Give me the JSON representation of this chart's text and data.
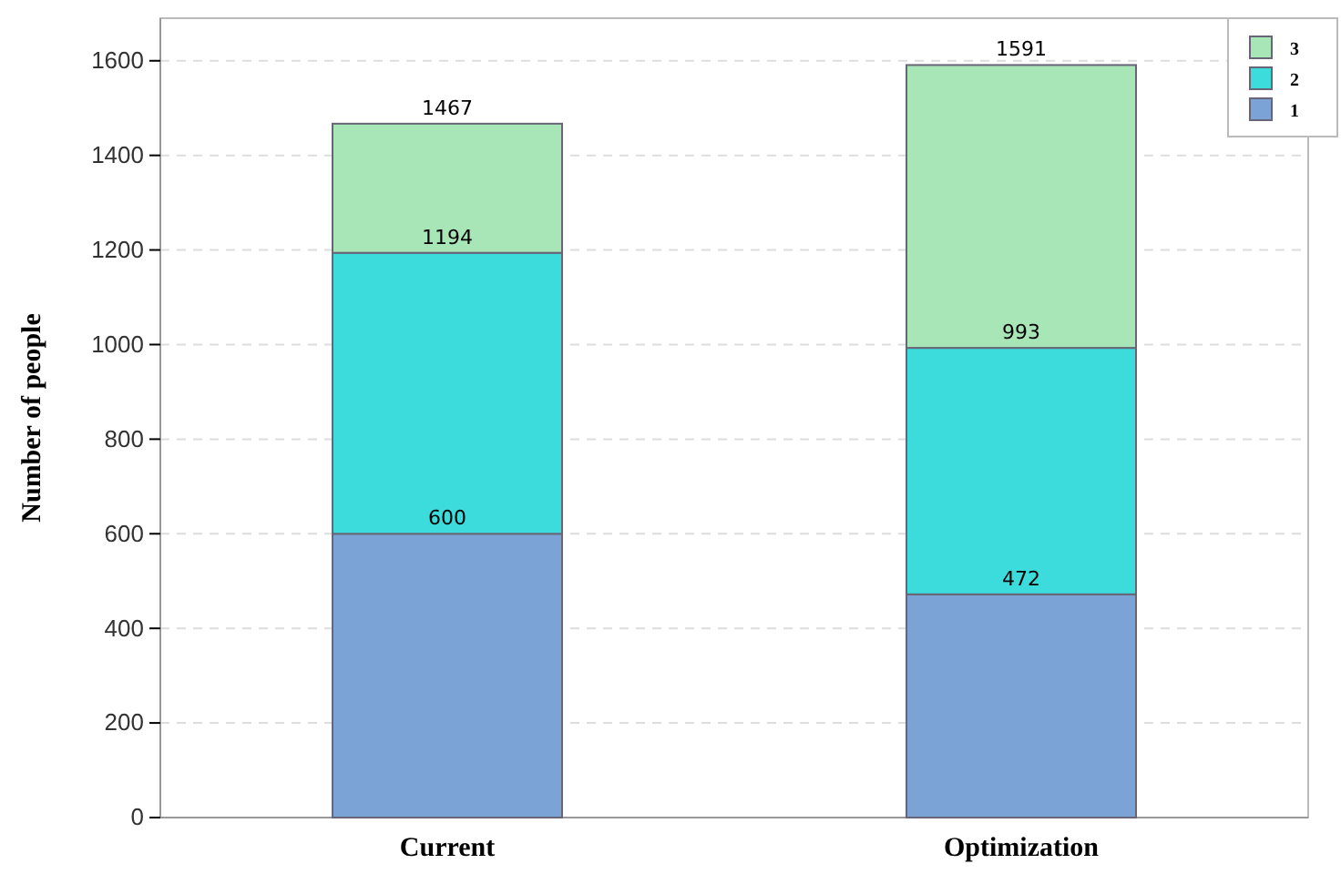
{
  "chart_data": {
    "type": "bar",
    "stacked": true,
    "ylabel": "Number of people",
    "categories": [
      "Current",
      "Optimization"
    ],
    "series": [
      {
        "name": "1",
        "color": "#7ba3d6",
        "values": [
          600,
          472
        ]
      },
      {
        "name": "2",
        "color": "#3ddcdc",
        "values": [
          594,
          521
        ]
      },
      {
        "name": "3",
        "color": "#a8e6b8",
        "values": [
          273,
          598
        ]
      }
    ],
    "totals": [
      "1467",
      "1591"
    ],
    "annotations": [
      {
        "text": "600",
        "x": "Current",
        "y": 600
      },
      {
        "text": "1194",
        "x": "Current",
        "y": 1194
      },
      {
        "text": "472",
        "x": "Optimization",
        "y": 472
      },
      {
        "text": "993",
        "x": "Optimization",
        "y": 993
      }
    ],
    "ylim": [
      0,
      1690
    ],
    "yticks": [
      0,
      200,
      400,
      600,
      800,
      1000,
      1200,
      1400,
      1600
    ],
    "grid": "y",
    "legend": "top right"
  }
}
